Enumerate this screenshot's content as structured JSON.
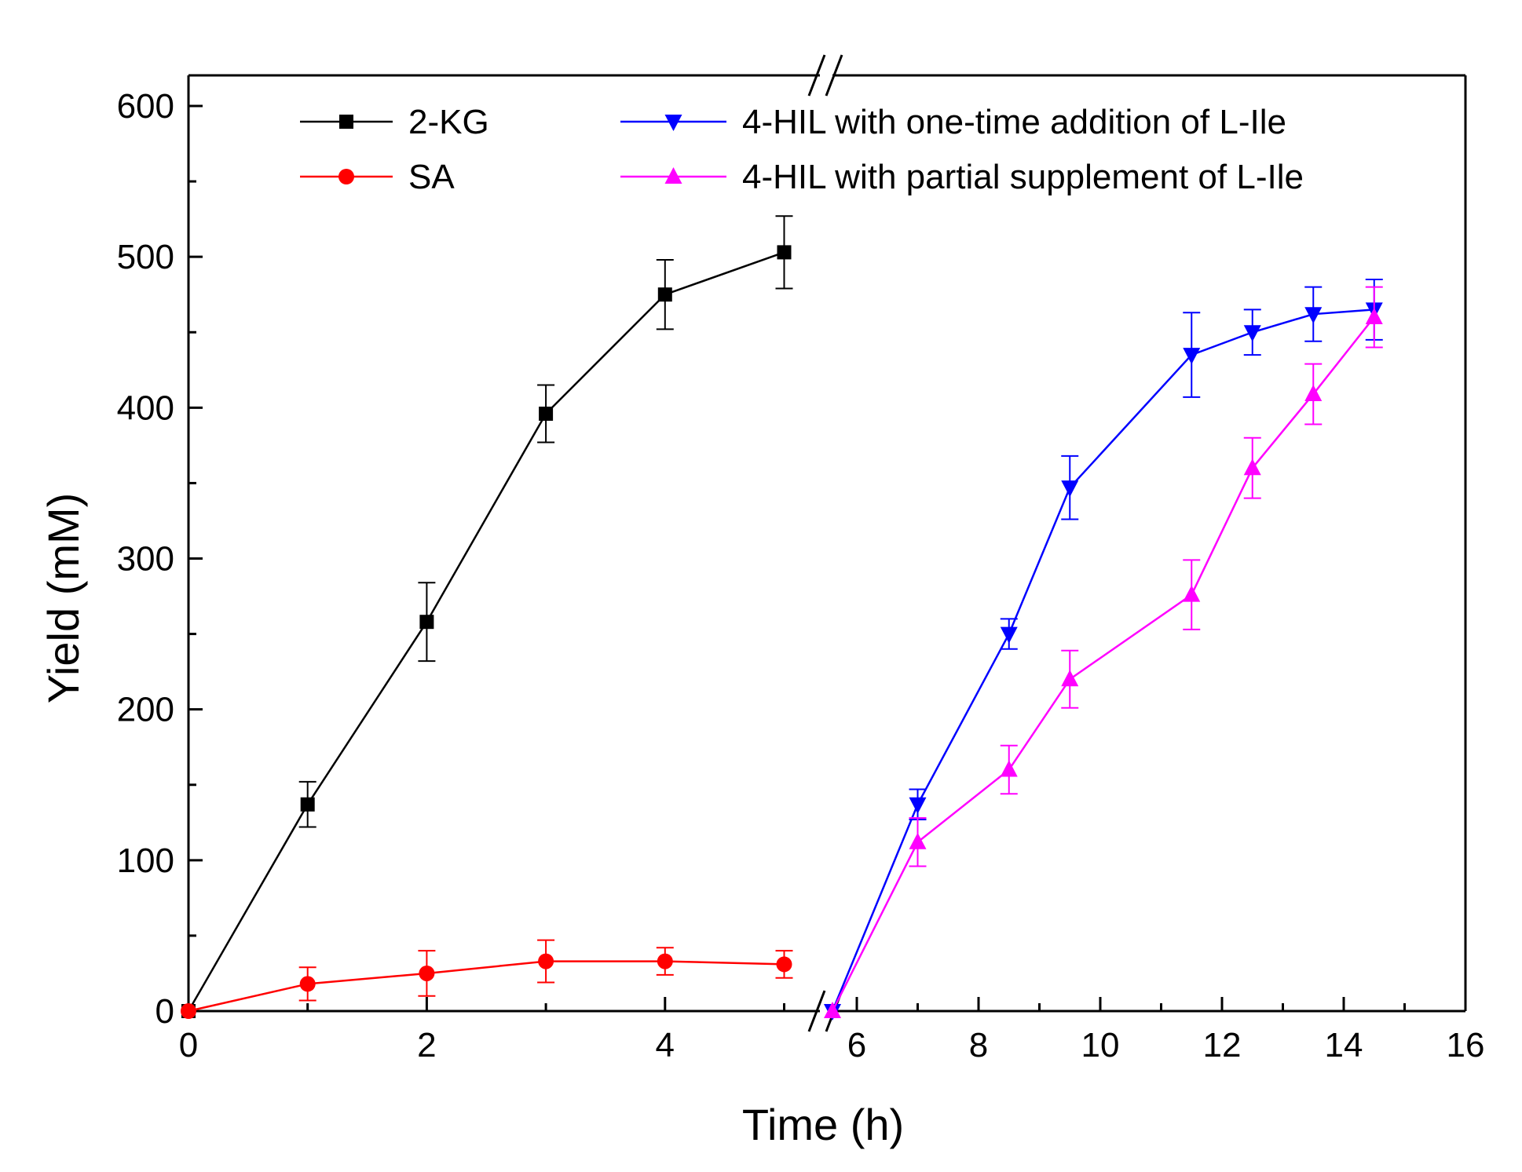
{
  "chart_data": {
    "type": "line",
    "xlabel": "Time (h)",
    "ylabel": "Yield (mM)",
    "xlim": [
      0,
      16
    ],
    "ylim": [
      0,
      600
    ],
    "x_axis_break": {
      "between": [
        5.3,
        5.6
      ],
      "description": "broken x-axis"
    },
    "segments": [
      {
        "name": "left",
        "data_x_range": [
          0,
          5.3
        ]
      },
      {
        "name": "right",
        "data_x_range": [
          5.6,
          16
        ]
      }
    ],
    "x_ticks": [
      {
        "value": 0,
        "label": "0",
        "segment": "left"
      },
      {
        "value": 2,
        "label": "2",
        "segment": "left"
      },
      {
        "value": 4,
        "label": "4",
        "segment": "left"
      },
      {
        "value": 6,
        "label": "6",
        "segment": "right"
      },
      {
        "value": 8,
        "label": "8",
        "segment": "right"
      },
      {
        "value": 10,
        "label": "10",
        "segment": "right"
      },
      {
        "value": 12,
        "label": "12",
        "segment": "right"
      },
      {
        "value": 14,
        "label": "14",
        "segment": "right"
      },
      {
        "value": 16,
        "label": "16",
        "segment": "right"
      }
    ],
    "y_ticks": [
      {
        "value": 0,
        "label": "0"
      },
      {
        "value": 100,
        "label": "100"
      },
      {
        "value": 200,
        "label": "200"
      },
      {
        "value": 300,
        "label": "300"
      },
      {
        "value": 400,
        "label": "400"
      },
      {
        "value": 500,
        "label": "500"
      },
      {
        "value": 600,
        "label": "600"
      }
    ],
    "series": [
      {
        "name": "2-KG",
        "color": "#000000",
        "marker": "square",
        "segment": "left",
        "x": [
          0,
          1,
          2,
          3,
          4,
          5
        ],
        "y": [
          0,
          137,
          258,
          396,
          475,
          503
        ],
        "err": [
          0,
          15,
          26,
          19,
          23,
          24
        ]
      },
      {
        "name": "SA",
        "color": "#ff0000",
        "marker": "circle",
        "segment": "left",
        "x": [
          0,
          1,
          2,
          3,
          4,
          5
        ],
        "y": [
          0,
          18,
          25,
          33,
          33,
          31
        ],
        "err": [
          0,
          11,
          15,
          14,
          9,
          9
        ]
      },
      {
        "name": "4-HIL with one-time addition of L-Ile",
        "color": "#0000ff",
        "marker": "triangle-down",
        "segment": "right",
        "x": [
          5.6,
          7,
          8.5,
          9.5,
          11.5,
          12.5,
          13.5,
          14.5
        ],
        "y": [
          0,
          137,
          250,
          347,
          435,
          450,
          462,
          465
        ],
        "err": [
          0,
          10,
          10,
          21,
          28,
          15,
          18,
          20
        ]
      },
      {
        "name": "4-HIL with partial supplement of L-Ile",
        "color": "#ff00ff",
        "marker": "triangle-up",
        "segment": "right",
        "x": [
          5.6,
          7,
          8.5,
          9.5,
          11.5,
          12.5,
          13.5,
          14.5
        ],
        "y": [
          0,
          112,
          160,
          220,
          276,
          360,
          409,
          460
        ],
        "err": [
          0,
          16,
          16,
          19,
          23,
          20,
          20,
          20
        ]
      }
    ],
    "legend": {
      "placement": "top",
      "entries": [
        "2-KG",
        "SA",
        "4-HIL with one-time addition of L-Ile",
        "4-HIL with partial supplement of L-Ile"
      ]
    }
  }
}
